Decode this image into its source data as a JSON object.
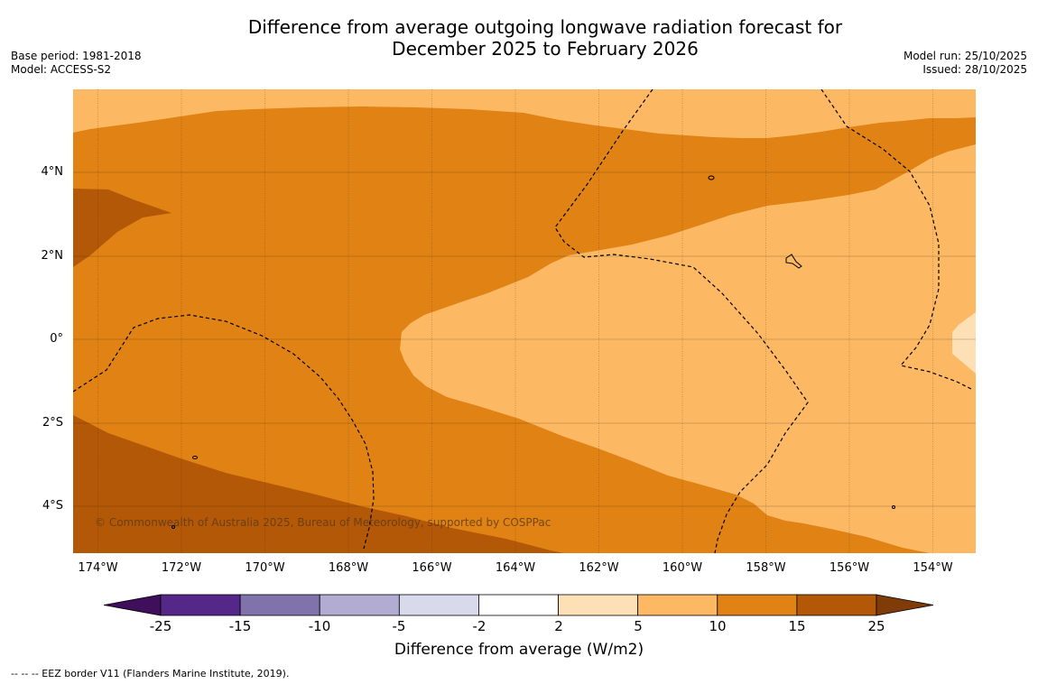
{
  "title": {
    "line1": "Difference from average outgoing longwave radiation forecast for",
    "line2": "December 2025 to February 2026"
  },
  "meta": {
    "base_period": "Base period: 1981-2018",
    "model": "Model: ACCESS-S2",
    "model_run": "Model run: 25/10/2025",
    "issued": "Issued: 28/10/2025"
  },
  "latitude_labels": [
    "4°N",
    "2°N",
    "0°",
    "2°S",
    "4°S"
  ],
  "longitude_labels": [
    "174°W",
    "172°W",
    "170°W",
    "168°W",
    "166°W",
    "164°W",
    "162°W",
    "160°W",
    "158°W",
    "156°W",
    "154°W"
  ],
  "copyright": "© Commonwealth of Australia 2025, Bureau of Meteorology, supported by COSPPac",
  "colorbar": {
    "ticks": [
      "-25",
      "-15",
      "-10",
      "-5",
      "-2",
      "2",
      "5",
      "10",
      "15",
      "25"
    ],
    "colors": [
      "#3f0f5c",
      "#542789",
      "#8073ac",
      "#b2abd2",
      "#d8daeb",
      "#ffffff",
      "#fee0b6",
      "#fdb863",
      "#e08214",
      "#b35806",
      "#7f3b08"
    ],
    "title": "Difference from average (W/m2)"
  },
  "footnote": "--  --  -- EEZ border V11 (Flanders Marine Institute, 2019)."
}
